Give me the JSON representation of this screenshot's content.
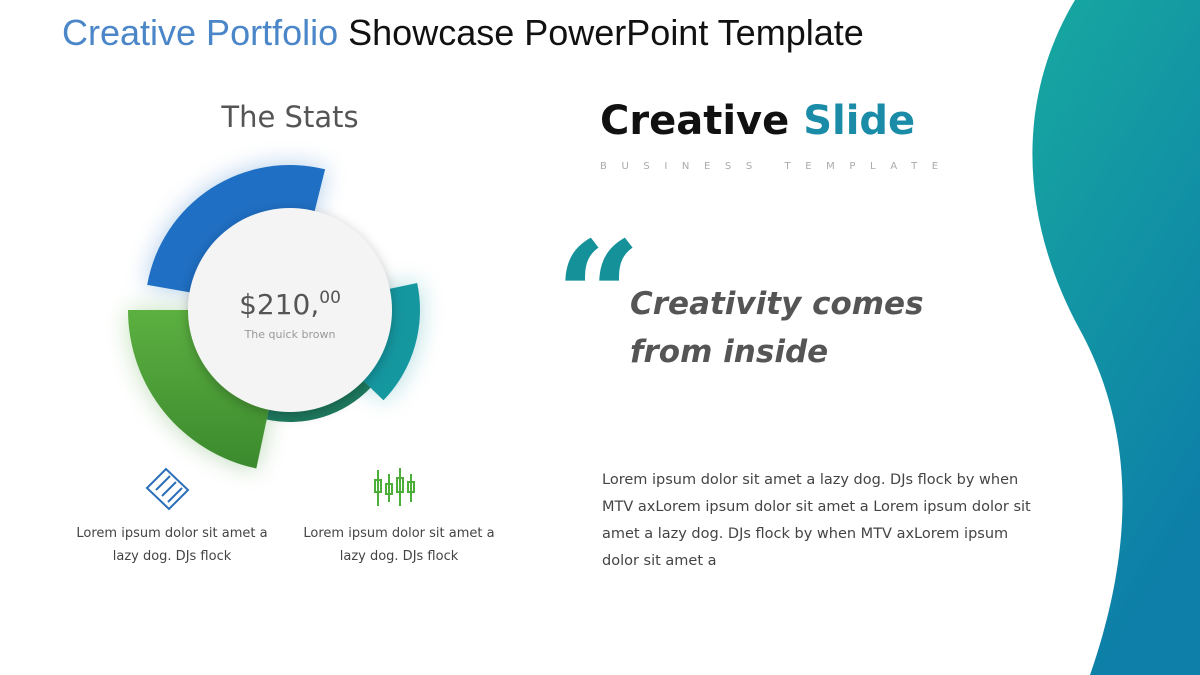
{
  "header": {
    "highlight": "Creative Portfolio",
    "rest": "Showcase PowerPoint Template"
  },
  "stats": {
    "heading": "The Stats",
    "amount": {
      "main": "$210,",
      "cents": "00"
    },
    "caption": "The quick brown",
    "features": [
      "Lorem ipsum dolor sit amet a lazy dog. DJs flock",
      "Lorem ipsum dolor sit amet a lazy dog. DJs flock"
    ]
  },
  "brand": {
    "first": "Creative",
    "second": "Slide",
    "tagline": "BUSINESS TEMPLATE"
  },
  "quote": {
    "mark": "“",
    "text": "Creativity comes from inside"
  },
  "body": "Lorem ipsum dolor sit amet a lazy dog. DJs flock by when MTV axLorem ipsum dolor sit amet a Lorem ipsum dolor sit amet a lazy dog. DJs flock by when MTV axLorem ipsum dolor sit amet a"
}
